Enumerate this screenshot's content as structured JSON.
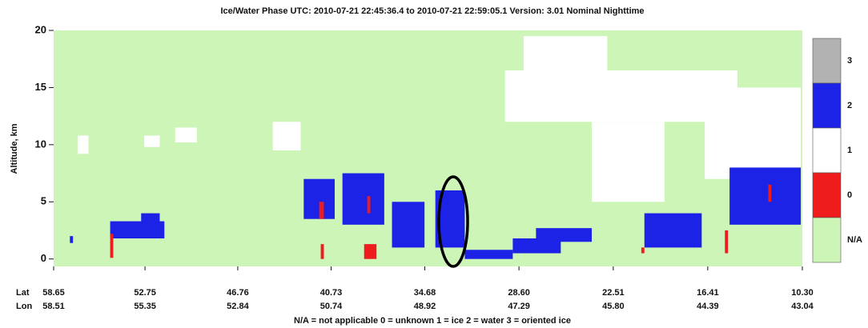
{
  "chart_data": {
    "type": "phase-profile",
    "title": "Ice/Water Phase    UTC:  2010-07-21    22:45:36.4  to  2010-07-21    22:59:05.1    Version: 3.01  Nominal Nighttime",
    "ylabel": "Altitude, km",
    "ylim": [
      -0.65,
      20
    ],
    "yticks": [
      0,
      5,
      10,
      15,
      20
    ],
    "xlim": [
      58.65,
      10.3
    ],
    "xticks": [
      58.65,
      52.75,
      46.76,
      40.73,
      34.68,
      {
        "value": 28.6,
        "label": "28.60"
      },
      22.51,
      16.41,
      {
        "value": 10.3,
        "label": "10.30"
      }
    ],
    "lat_label": "Lat",
    "lon_label": "Lon",
    "lon_labels": [
      "58.51",
      "55.35",
      "52.84",
      "50.74",
      "48.92",
      "47.29",
      "45.80",
      "44.39",
      "43.04"
    ],
    "footnote": "N/A = not applicable     0 = unknown     1 = ice     2 = water     3 = oriented ice",
    "colorbar": [
      {
        "label": 3,
        "color": "#b2b2b2"
      },
      {
        "label": 2,
        "color": "#1c22e6"
      },
      {
        "label": 1,
        "color": "#ffffff"
      },
      {
        "label": 0,
        "color": "#ee1c1c"
      },
      {
        "label": "N/A",
        "color": "#cdf5b8"
      }
    ],
    "cells": [
      {
        "lat": [
          57.6,
          57.4
        ],
        "alt": [
          1.4,
          2.0
        ],
        "phase": 2
      },
      {
        "lat": [
          55.0,
          51.5
        ],
        "alt": [
          1.8,
          3.3
        ],
        "phase": 2
      },
      {
        "lat": [
          53.0,
          51.8
        ],
        "alt": [
          3.0,
          4.0
        ],
        "phase": 2
      },
      {
        "lat": [
          55.0,
          54.8
        ],
        "alt": [
          0.1,
          2.2
        ],
        "phase": 0
      },
      {
        "lat": [
          57.1,
          56.4
        ],
        "alt": [
          9.2,
          10.8
        ],
        "phase": 1
      },
      {
        "lat": [
          52.8,
          51.8
        ],
        "alt": [
          9.8,
          10.8
        ],
        "phase": 1
      },
      {
        "lat": [
          50.8,
          49.4
        ],
        "alt": [
          10.2,
          11.5
        ],
        "phase": 1
      },
      {
        "lat": [
          44.5,
          42.7
        ],
        "alt": [
          9.5,
          12.0
        ],
        "phase": 1
      },
      {
        "lat": [
          42.5,
          40.5
        ],
        "alt": [
          3.5,
          7.0
        ],
        "phase": 2
      },
      {
        "lat": [
          40.0,
          37.3
        ],
        "alt": [
          3.0,
          7.5
        ],
        "phase": 2
      },
      {
        "lat": [
          41.5,
          41.2
        ],
        "alt": [
          3.5,
          5.0
        ],
        "phase": 0
      },
      {
        "lat": [
          38.4,
          38.2
        ],
        "alt": [
          4.0,
          5.5
        ],
        "phase": 0
      },
      {
        "lat": [
          36.8,
          34.7
        ],
        "alt": [
          1.0,
          5.0
        ],
        "phase": 2
      },
      {
        "lat": [
          34.0,
          32.1
        ],
        "alt": [
          1.0,
          6.0
        ],
        "phase": 2
      },
      {
        "lat": [
          41.4,
          41.2
        ],
        "alt": [
          0.0,
          1.3
        ],
        "phase": 0
      },
      {
        "lat": [
          38.6,
          37.8
        ],
        "alt": [
          0.0,
          1.3
        ],
        "phase": 0
      },
      {
        "lat": [
          32.1,
          29.0
        ],
        "alt": [
          0.0,
          0.8
        ],
        "phase": 2
      },
      {
        "lat": [
          29.0,
          25.9
        ],
        "alt": [
          0.5,
          1.8
        ],
        "phase": 2
      },
      {
        "lat": [
          27.5,
          23.9
        ],
        "alt": [
          1.5,
          2.7
        ],
        "phase": 2
      },
      {
        "lat": [
          29.5,
          14.5
        ],
        "alt": [
          12.0,
          16.5
        ],
        "phase": 1
      },
      {
        "lat": [
          28.3,
          22.9
        ],
        "alt": [
          16.5,
          19.5
        ],
        "phase": 1
      },
      {
        "lat": [
          23.9,
          19.2
        ],
        "alt": [
          5.0,
          12.0
        ],
        "phase": 1
      },
      {
        "lat": [
          16.6,
          10.4
        ],
        "alt": [
          7.0,
          15.0
        ],
        "phase": 1
      },
      {
        "lat": [
          15.0,
          10.4
        ],
        "alt": [
          3.0,
          8.0
        ],
        "phase": 2
      },
      {
        "lat": [
          20.5,
          16.8
        ],
        "alt": [
          1.0,
          4.0
        ],
        "phase": 2
      },
      {
        "lat": [
          15.3,
          15.1
        ],
        "alt": [
          0.5,
          2.5
        ],
        "phase": 0
      },
      {
        "lat": [
          20.7,
          20.5
        ],
        "alt": [
          0.5,
          1.0
        ],
        "phase": 0
      },
      {
        "lat": [
          12.5,
          12.3
        ],
        "alt": [
          5.0,
          6.5
        ],
        "phase": 0
      }
    ]
  }
}
